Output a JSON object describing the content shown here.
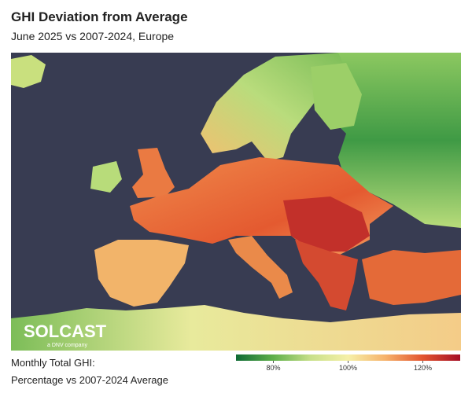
{
  "header": {
    "title": "GHI Deviation from Average",
    "subtitle": "June 2025 vs 2007-2024, Europe"
  },
  "logo": {
    "name": "SOLCAST",
    "tagline": "a DNV company"
  },
  "legend": {
    "lines": [
      "Monthly Total GHI:",
      "Percentage vs 2007-2024 Average"
    ]
  },
  "colorbar": {
    "range": [
      70,
      130
    ],
    "ticks": [
      {
        "value": 80,
        "label": "80%"
      },
      {
        "value": 100,
        "label": "100%"
      },
      {
        "value": 120,
        "label": "120%"
      }
    ],
    "colors": [
      "#0f6b35",
      "#5fb04a",
      "#c8e08a",
      "#f6f0a8",
      "#f6b26b",
      "#e2542f",
      "#a50f26"
    ]
  }
}
